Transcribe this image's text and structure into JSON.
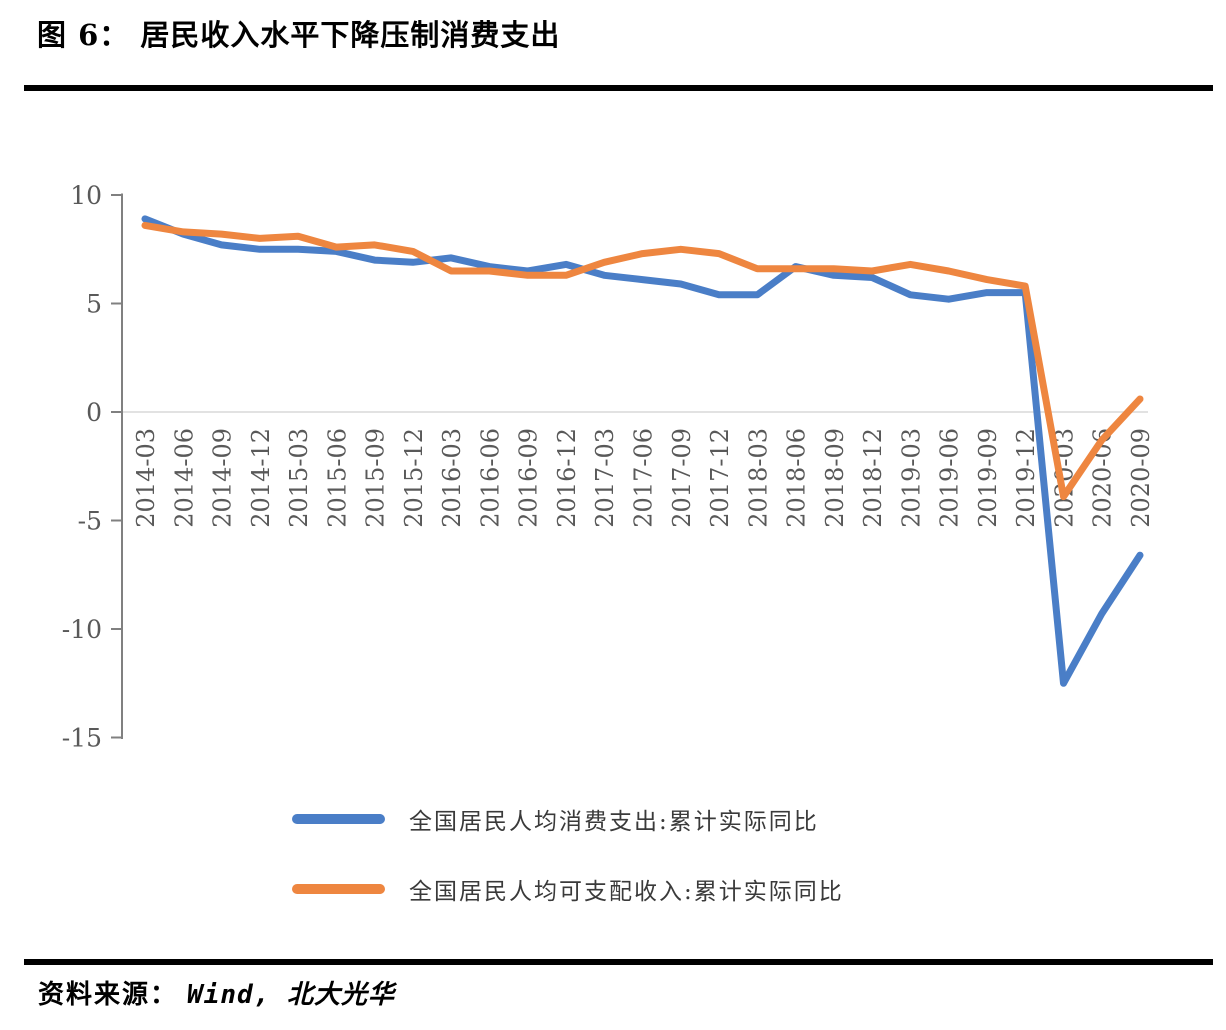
{
  "figure": {
    "title": "图 6： 居民收入水平下降压制消费支出",
    "source_prefix": "资料来源：",
    "source_value": "Wind, 北大光华"
  },
  "chart_data": {
    "type": "line",
    "title": "居民收入水平下降压制消费支出",
    "xlabel": "",
    "ylabel": "",
    "ylim": [
      -15,
      10
    ],
    "yticks": [
      10,
      5,
      0,
      -5,
      -10,
      -15
    ],
    "grid": "zero-line-only",
    "legend_position": "bottom-left",
    "axis_color": "#808080",
    "tick_label_color": "#595959",
    "zero_line_color": "#d9d9d9",
    "categories": [
      "2014-03",
      "2014-06",
      "2014-09",
      "2014-12",
      "2015-03",
      "2015-06",
      "2015-09",
      "2015-12",
      "2016-03",
      "2016-06",
      "2016-09",
      "2016-12",
      "2017-03",
      "2017-06",
      "2017-09",
      "2017-12",
      "2018-03",
      "2018-06",
      "2018-09",
      "2018-12",
      "2019-03",
      "2019-06",
      "2019-09",
      "2019-12",
      "2020-03",
      "2020-06",
      "2020-09"
    ],
    "series": [
      {
        "name": "全国居民人均消费支出:累计实际同比",
        "color": "#4a7ec7",
        "values": [
          8.9,
          8.2,
          7.7,
          7.5,
          7.5,
          7.4,
          7.0,
          6.9,
          7.1,
          6.7,
          6.5,
          6.8,
          6.3,
          6.1,
          5.9,
          5.4,
          5.4,
          6.7,
          6.3,
          6.2,
          5.4,
          5.2,
          5.5,
          5.5,
          -12.5,
          -9.3,
          -6.6
        ]
      },
      {
        "name": "全国居民人均可支配收入:累计实际同比",
        "color": "#ee8640",
        "values": [
          8.6,
          8.3,
          8.2,
          8.0,
          8.1,
          7.6,
          7.7,
          7.4,
          6.5,
          6.5,
          6.3,
          6.3,
          6.9,
          7.3,
          7.5,
          7.3,
          6.6,
          6.6,
          6.6,
          6.5,
          6.8,
          6.5,
          6.1,
          5.8,
          -3.9,
          -1.3,
          0.6
        ]
      }
    ]
  }
}
